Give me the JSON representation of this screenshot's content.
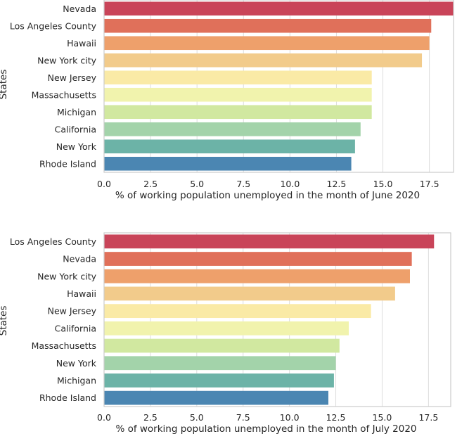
{
  "chart_data": [
    {
      "type": "bar",
      "orientation": "horizontal",
      "categories": [
        "Nevada",
        "Los Angeles County",
        "Hawaii",
        "New York city",
        "New Jersey",
        "Massachusetts",
        "Michigan",
        "California",
        "New York",
        "Rhode Island"
      ],
      "values": [
        18.8,
        17.6,
        17.5,
        17.1,
        14.4,
        14.4,
        14.4,
        13.8,
        13.5,
        13.3
      ],
      "xlabel": "% of working population unemployed in the month of June 2020",
      "ylabel": "States",
      "xlim": [
        0,
        18.8
      ],
      "xticks": [
        "0.0",
        "2.5",
        "5.0",
        "7.5",
        "10.0",
        "12.5",
        "15.0",
        "17.5"
      ],
      "grid": "vertical",
      "colors": [
        "#c94459",
        "#e0705a",
        "#eea06b",
        "#f2cb8b",
        "#faeaa6",
        "#f1f3ad",
        "#d1e8a0",
        "#a3d3aa",
        "#6cb3a7",
        "#4b86b2"
      ]
    },
    {
      "type": "bar",
      "orientation": "horizontal",
      "categories": [
        "Los Angeles County",
        "Nevada",
        "New York city",
        "Hawaii",
        "New Jersey",
        "California",
        "Massachusetts",
        "New York",
        "Michigan",
        "Rhode Island"
      ],
      "values": [
        17.8,
        16.6,
        16.5,
        15.7,
        14.4,
        13.2,
        12.7,
        12.5,
        12.4,
        12.1
      ],
      "xlabel": "% of working population unemployed in the month of July 2020",
      "ylabel": "States",
      "xlim": [
        0,
        18.7
      ],
      "xticks": [
        "0.0",
        "2.5",
        "5.0",
        "7.5",
        "10.0",
        "12.5",
        "15.0",
        "17.5"
      ],
      "grid": "vertical",
      "colors": [
        "#c94459",
        "#e0705a",
        "#eea06b",
        "#f2cb8b",
        "#faeaa6",
        "#f1f3ad",
        "#d1e8a0",
        "#a3d3aa",
        "#6cb3a7",
        "#4b86b2"
      ]
    }
  ]
}
